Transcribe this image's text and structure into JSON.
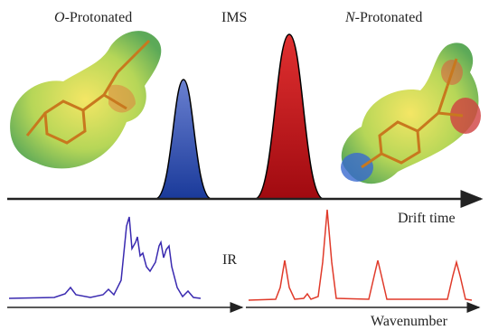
{
  "figure": {
    "left_label": {
      "italic": "O",
      "rest": "-Protonated"
    },
    "center_label": "IMS",
    "right_label": {
      "italic": "N",
      "rest": "-Protonated"
    },
    "drift_axis": "Drift time",
    "ir_label": "IR",
    "wavenumber_axis": "Wavenumber"
  }
}
